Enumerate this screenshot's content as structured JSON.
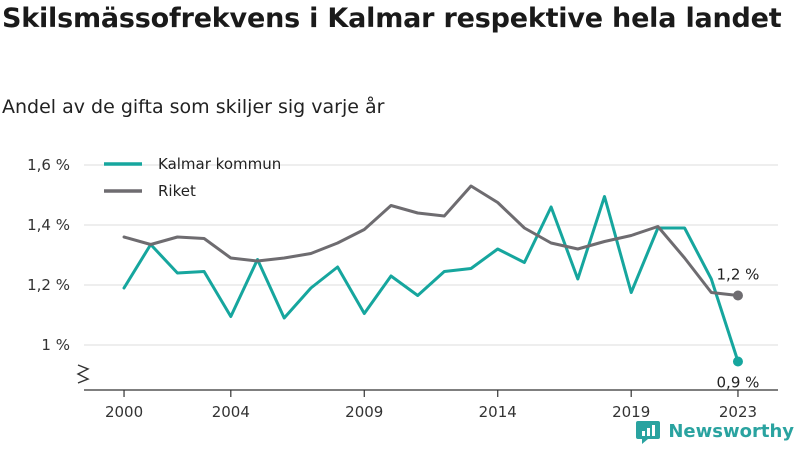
{
  "chart_data": {
    "type": "line",
    "title": "Skilsmässofrekvens i Kalmar respektive hela landet",
    "subtitle": "Andel av de gifta som skiljer sig varje år",
    "x": [
      2000,
      2001,
      2002,
      2003,
      2004,
      2005,
      2006,
      2007,
      2008,
      2009,
      2010,
      2011,
      2012,
      2013,
      2014,
      2015,
      2016,
      2017,
      2018,
      2019,
      2020,
      2021,
      2022,
      2023
    ],
    "x_ticks": [
      2000,
      2004,
      2009,
      2014,
      2019,
      2023
    ],
    "x_tick_labels": [
      "2000",
      "2004",
      "2009",
      "2014",
      "2019",
      "2023"
    ],
    "y_ticks": [
      1.0,
      1.2,
      1.4,
      1.6
    ],
    "y_tick_labels": [
      "1 %",
      "1,2 %",
      "1,4 %",
      "1,6 %"
    ],
    "ylim": [
      0.85,
      1.65
    ],
    "grid": true,
    "legend_position": "top-left",
    "series": [
      {
        "name": "Kalmar kommun",
        "color": "#16a69e",
        "values": [
          1.19,
          1.335,
          1.24,
          1.245,
          1.095,
          1.285,
          1.09,
          1.19,
          1.26,
          1.105,
          1.23,
          1.165,
          1.245,
          1.255,
          1.32,
          1.275,
          1.46,
          1.22,
          1.495,
          1.175,
          1.39,
          1.39,
          1.22,
          0.945
        ],
        "end_label": "0,9 %"
      },
      {
        "name": "Riket",
        "color": "#6e6c70",
        "values": [
          1.36,
          1.335,
          1.36,
          1.355,
          1.29,
          1.28,
          1.29,
          1.305,
          1.34,
          1.385,
          1.465,
          1.44,
          1.43,
          1.53,
          1.475,
          1.39,
          1.34,
          1.32,
          1.345,
          1.365,
          1.395,
          1.29,
          1.175,
          1.165
        ],
        "end_label": "1,2 %"
      }
    ]
  },
  "brand": {
    "name": "Newsworthy",
    "icon": "newsworthy-logo-icon",
    "color": "#2aa3a0"
  }
}
